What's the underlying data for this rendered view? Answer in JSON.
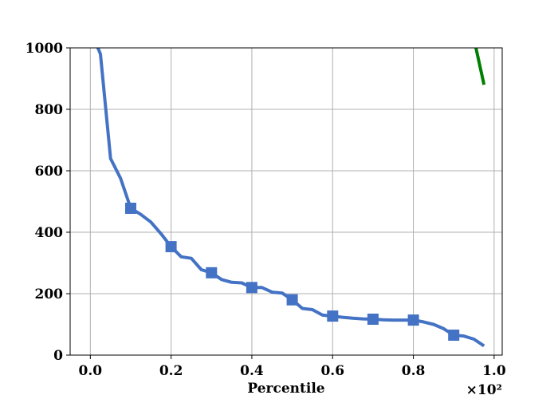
{
  "chart_data": {
    "type": "line",
    "title": "",
    "xlabel": "Percentile",
    "ylabel": "",
    "x_scale_note": "×10²",
    "xlim": [
      -0.05,
      1.02
    ],
    "ylim": [
      0,
      1000
    ],
    "x_ticks": [
      0.0,
      0.2,
      0.4,
      0.6,
      0.8,
      1.0
    ],
    "x_tick_labels": [
      "0.0",
      "0.2",
      "0.4",
      "0.6",
      "0.8",
      "1.0"
    ],
    "y_ticks": [
      0,
      200,
      400,
      600,
      800,
      1000
    ],
    "y_tick_labels": [
      "0",
      "200",
      "400",
      "600",
      "800",
      "1000"
    ],
    "grid": true,
    "series": [
      {
        "color": "#4472c4",
        "marker": "square",
        "x": [
          0.0,
          0.025,
          0.05,
          0.075,
          0.1,
          0.125,
          0.15,
          0.175,
          0.2,
          0.225,
          0.25,
          0.275,
          0.3,
          0.325,
          0.35,
          0.375,
          0.4,
          0.425,
          0.45,
          0.475,
          0.5,
          0.525,
          0.55,
          0.575,
          0.6,
          0.625,
          0.65,
          0.675,
          0.7,
          0.725,
          0.75,
          0.775,
          0.8,
          0.825,
          0.85,
          0.875,
          0.9,
          0.925,
          0.95,
          0.975
        ],
        "y": [
          1060,
          980,
          640,
          575,
          478,
          458,
          433,
          395,
          353,
          320,
          315,
          278,
          268,
          246,
          237,
          235,
          220,
          220,
          205,
          202,
          180,
          152,
          148,
          130,
          127,
          123,
          120,
          118,
          117,
          115,
          114,
          114,
          114,
          108,
          100,
          86,
          65,
          62,
          52,
          30
        ],
        "marker_x": [
          0.1,
          0.2,
          0.3,
          0.4,
          0.5,
          0.6,
          0.7,
          0.8,
          0.9
        ],
        "marker_y": [
          478,
          353,
          268,
          220,
          180,
          127,
          117,
          114,
          65
        ]
      },
      {
        "color": "#008000",
        "marker": "none",
        "x": [
          0.95,
          0.975
        ],
        "y": [
          1030,
          880
        ]
      }
    ]
  }
}
